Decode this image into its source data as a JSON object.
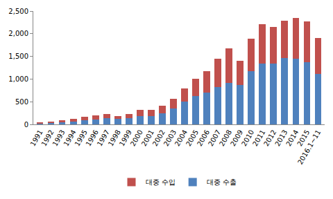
{
  "chart_data": {
    "type": "bar",
    "stacked": true,
    "categories": [
      "1991",
      "1992",
      "1993",
      "1994",
      "1995",
      "1996",
      "1997",
      "1998",
      "1999",
      "2000",
      "2001",
      "2002",
      "2003",
      "2004",
      "2005",
      "2006",
      "2007",
      "2008",
      "2009",
      "2010",
      "2011",
      "2012",
      "2013",
      "2014",
      "2015",
      "2016.1~11"
    ],
    "series": [
      {
        "name": "대중 수출",
        "color": "#4f81bd",
        "values": [
          10,
          27,
          51,
          62,
          91,
          114,
          135,
          119,
          137,
          185,
          182,
          238,
          351,
          498,
          619,
          695,
          820,
          914,
          867,
          1168,
          1342,
          1343,
          1459,
          1453,
          1371,
          1120
        ]
      },
      {
        "name": "대중 수입",
        "color": "#c0504d",
        "values": [
          34,
          37,
          39,
          54,
          74,
          85,
          101,
          65,
          89,
          128,
          133,
          174,
          219,
          296,
          386,
          486,
          630,
          769,
          542,
          716,
          864,
          808,
          831,
          901,
          903,
          790
        ]
      }
    ],
    "ylim": [
      0,
      2500
    ],
    "yticks": [
      0,
      500,
      {
        "value": 1000,
        "label": "1,000"
      },
      {
        "value": 1500,
        "label": "1,500"
      },
      {
        "value": 2000,
        "label": "2,000"
      },
      {
        "value": 2500,
        "label": "2,500"
      }
    ],
    "grid": false,
    "legend": "bottom"
  }
}
